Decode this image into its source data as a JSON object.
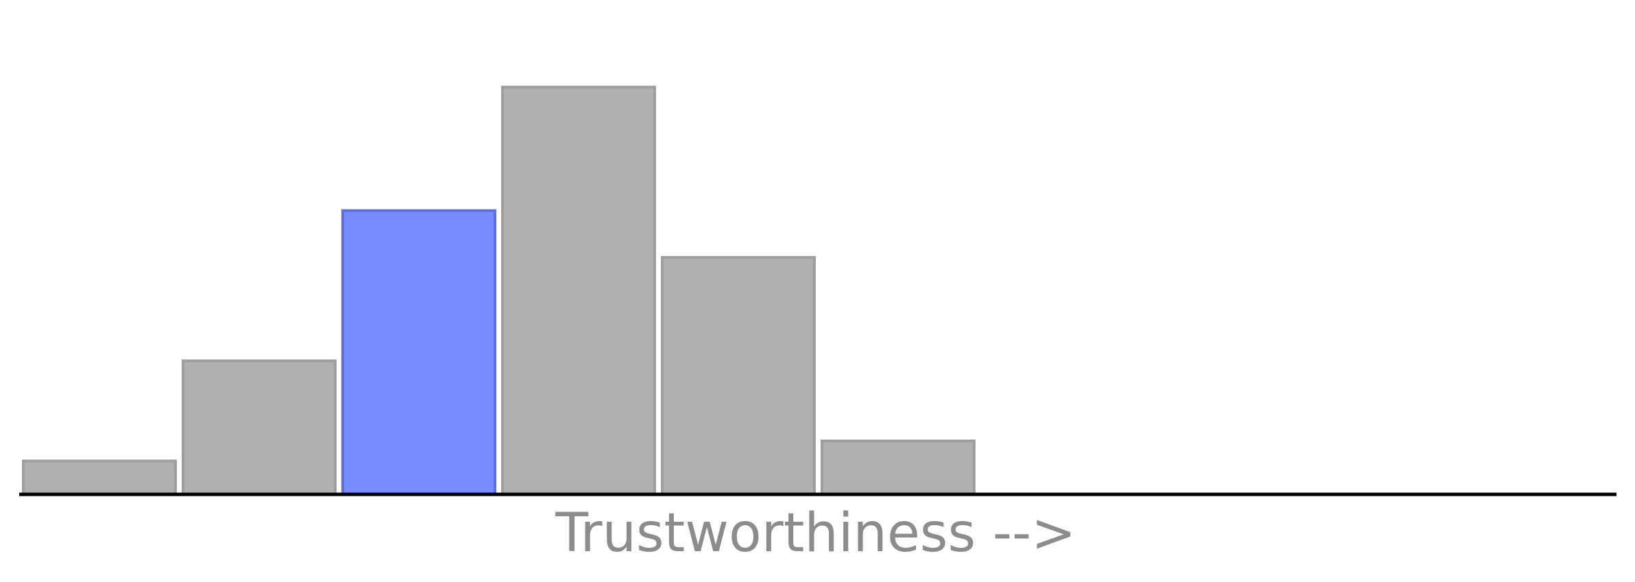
{
  "chart_data": {
    "type": "bar",
    "title": "",
    "xlabel": "Trustworthiness -->",
    "ylabel": "",
    "categories": [
      "",
      "",
      "",
      "",
      "",
      ""
    ],
    "values": [
      1,
      4,
      8.5,
      12.2,
      7.1,
      1.6
    ],
    "highlight_index": 2,
    "ylim": [
      0,
      20
    ],
    "grid": false,
    "legend": "none",
    "colors": {
      "bar_fill": "#b0b0b0",
      "bar_stroke": "#9e9e9e",
      "highlight_fill": "#778cff",
      "highlight_stroke": "#5b6ee8",
      "axis": "#000000",
      "label": "#8c8c8c",
      "background": "#ffffff"
    }
  }
}
